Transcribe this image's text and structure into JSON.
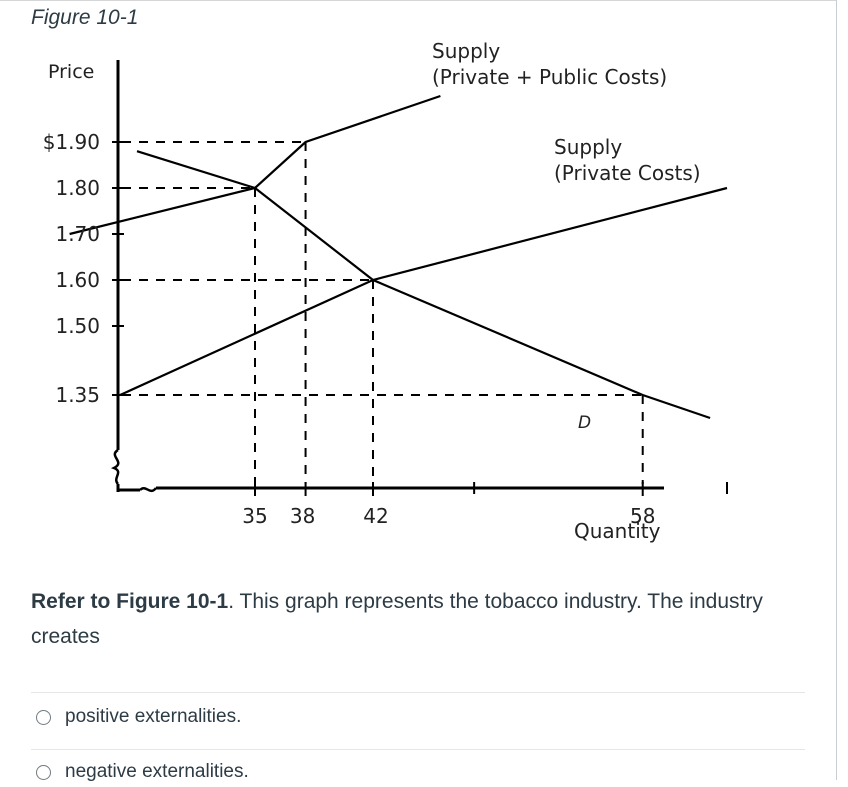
{
  "figure_title": "Figure 10-1",
  "question": {
    "ref": "Refer to Figure 10-1",
    "text_after_ref": ". This graph represents the tobacco industry. The industry creates"
  },
  "answers": [
    {
      "label": "positive externalities."
    },
    {
      "label": "negative externalities."
    }
  ],
  "chart_data": {
    "type": "line",
    "ylabel": "Price",
    "xlabel": "Quantity",
    "y_ticks": [
      {
        "value": 1.9,
        "label": "$1.90"
      },
      {
        "value": 1.8,
        "label": "1.80"
      },
      {
        "value": 1.7,
        "label": "1.70"
      },
      {
        "value": 1.6,
        "label": "1.60"
      },
      {
        "value": 1.5,
        "label": "1.50"
      },
      {
        "value": 1.35,
        "label": "1.35"
      }
    ],
    "x_ticks": [
      {
        "value": 35,
        "label": "35"
      },
      {
        "value": 38,
        "label": "38"
      },
      {
        "value": 42,
        "label": "42"
      },
      {
        "value": 58,
        "label": "58"
      }
    ],
    "series": [
      {
        "name": "Supply (Private + Public Costs)",
        "label_lines": [
          "Supply",
          "(Private + Public Costs)"
        ],
        "points": [
          [
            24,
            1.7
          ],
          [
            35,
            1.8
          ],
          [
            38,
            1.9
          ],
          [
            46,
            2.0
          ]
        ]
      },
      {
        "name": "Supply (Private Costs)",
        "label_lines": [
          "Supply",
          "(Private Costs)"
        ],
        "points": [
          [
            27,
            1.35
          ],
          [
            42,
            1.6
          ],
          [
            63,
            1.8
          ]
        ]
      },
      {
        "name": "D",
        "label_lines": [
          "D"
        ],
        "points": [
          [
            28,
            1.88
          ],
          [
            35,
            1.8
          ],
          [
            42,
            1.6
          ],
          [
            58,
            1.35
          ],
          [
            62,
            1.3
          ]
        ]
      }
    ],
    "guides": [
      {
        "x": 38,
        "y": 1.9
      },
      {
        "x": 35,
        "y": 1.8
      },
      {
        "x": 42,
        "y": 1.6
      },
      {
        "x": 58,
        "y": 1.35
      }
    ]
  }
}
